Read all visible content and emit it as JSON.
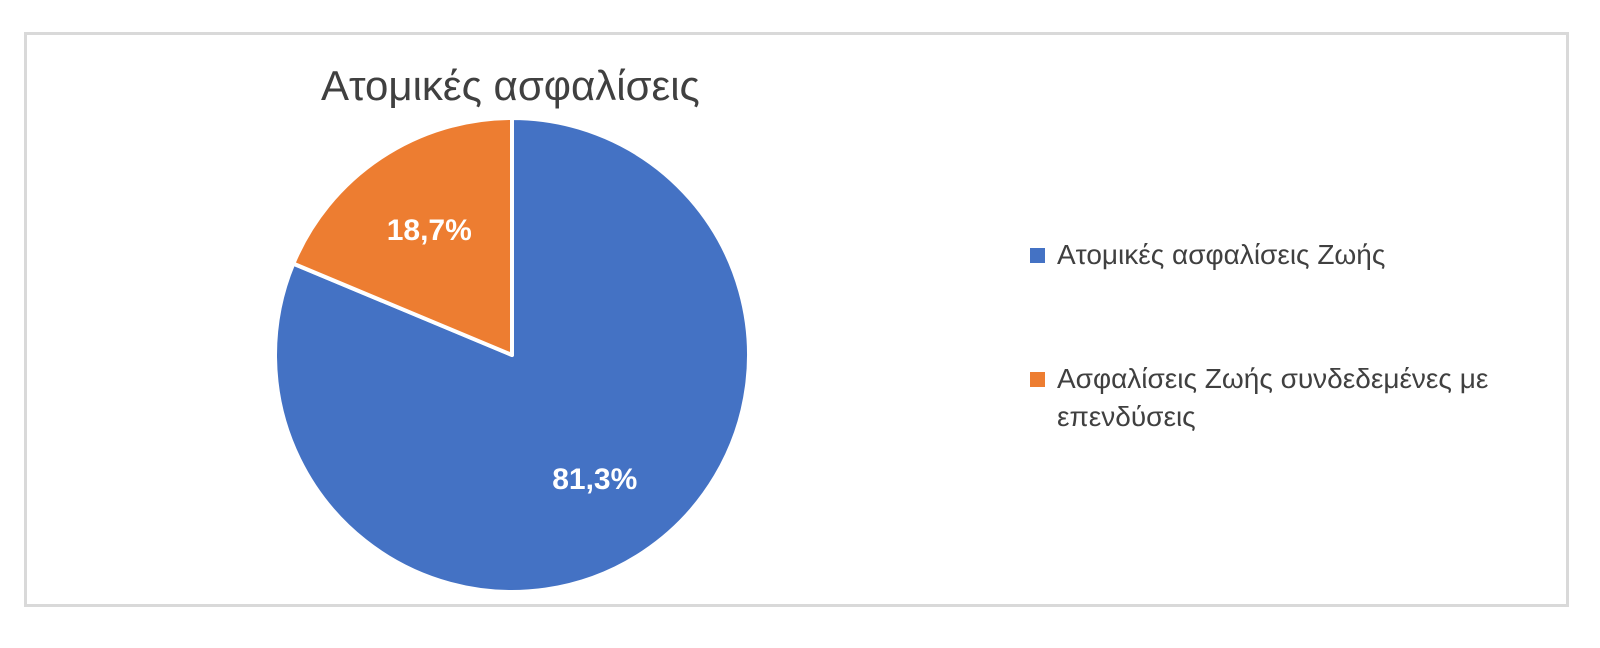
{
  "chart_data": {
    "type": "pie",
    "title": "Ατομικές ασφαλίσεις",
    "categories": [
      "Ατομικές ασφαλίσεις Ζωής",
      "Ασφαλίσεις Ζωής συνδεδεμένες με επενδύσεις"
    ],
    "values": [
      81.3,
      18.7
    ],
    "data_labels": [
      "81,3%",
      "18,7%"
    ],
    "colors": [
      "#4472C4",
      "#ED7D31"
    ],
    "slice_border_color": "#ffffff",
    "label_color": "#ffffff",
    "legend_placement": "right",
    "start_angle": "12 o'clock",
    "direction": "clockwise"
  }
}
